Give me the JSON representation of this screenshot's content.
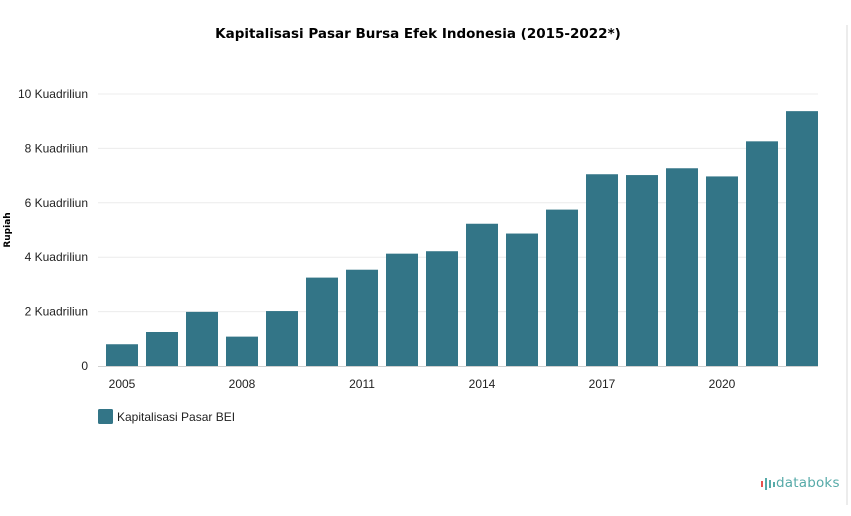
{
  "title": "Kapitalisasi Pasar Bursa Efek Indonesia (2015-2022*)",
  "brand": {
    "name": "databoks"
  },
  "colors": {
    "bar": "#337587",
    "grid": "#ececec",
    "axis": "#cfcfcf",
    "brand": "#56aaa8",
    "brand_dot": "#e8524e"
  },
  "chart_data": {
    "type": "bar",
    "title": "Kapitalisasi Pasar Bursa Efek Indonesia (2015-2022*)",
    "ylabel": "Rupiah",
    "xlabel": "",
    "categories": [
      "2005",
      "2006",
      "2007",
      "2008",
      "2009",
      "2010",
      "2011",
      "2012",
      "2013",
      "2014",
      "2015",
      "2016",
      "2017",
      "2018",
      "2019",
      "2020",
      "2021",
      "2022"
    ],
    "x_tick_labels": [
      "2005",
      "2008",
      "2011",
      "2014",
      "2017",
      "2020"
    ],
    "y_tick_labels": [
      "0",
      "2 Kuadriliun",
      "4 Kuadriliun",
      "6 Kuadriliun",
      "8 Kuadriliun",
      "10 Kuadriliun"
    ],
    "series": [
      {
        "name": "Kapitalisasi Pasar BEI",
        "values": [
          0.8,
          1.25,
          1.99,
          1.08,
          2.02,
          3.25,
          3.54,
          4.13,
          4.22,
          5.23,
          4.87,
          5.75,
          7.05,
          7.02,
          7.27,
          6.97,
          8.26,
          9.37
        ]
      }
    ],
    "ylim": [
      0,
      10
    ],
    "grid": true,
    "legend": "bottom-left"
  }
}
